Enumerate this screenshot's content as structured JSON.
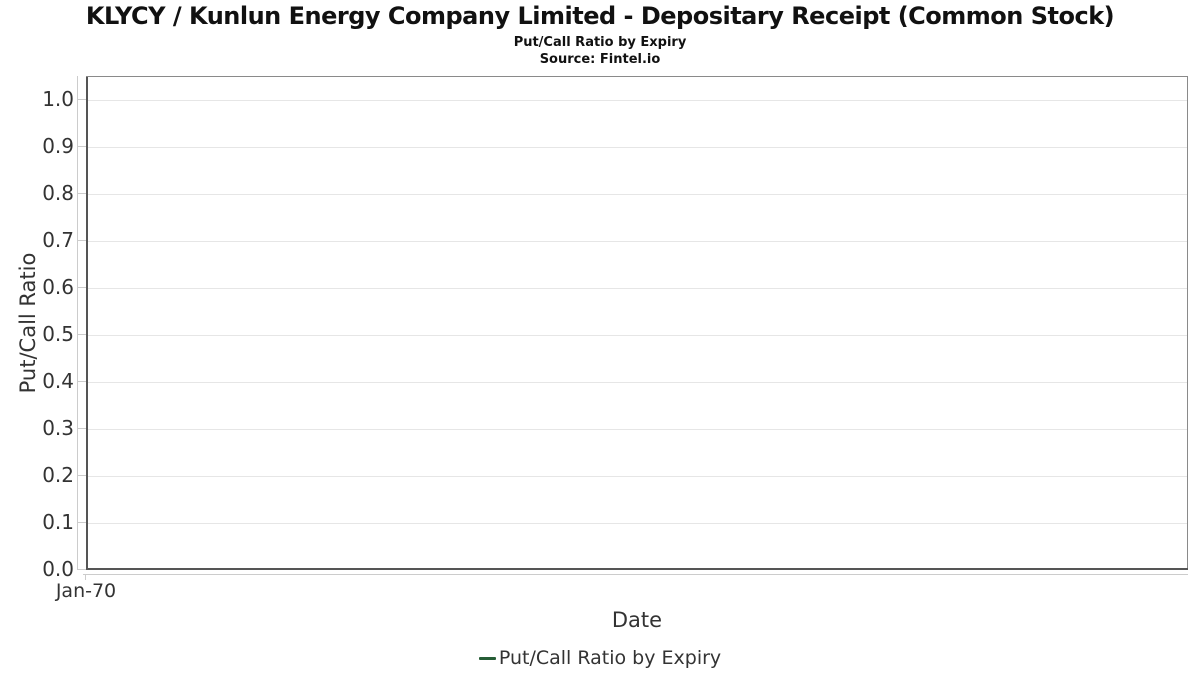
{
  "chart_data": {
    "type": "line",
    "title": "KLYCY / Kunlun Energy Company Limited - Depositary Receipt (Common Stock)",
    "subtitle": "Put/Call Ratio by Expiry",
    "source": "Source: Fintel.io",
    "xlabel": "Date",
    "ylabel": "Put/Call Ratio",
    "ylim": [
      0.0,
      1.05
    ],
    "yticks": [
      0.0,
      0.1,
      0.2,
      0.3,
      0.4,
      0.5,
      0.6,
      0.7,
      0.8,
      0.9,
      1.0
    ],
    "ytick_format_decimals": 1,
    "xticks": [
      "Jan-70"
    ],
    "grid": "horizontal-only",
    "gridline_color": "#e6e6e6",
    "legend_position": "bottom",
    "series": [
      {
        "name": "Put/Call Ratio by Expiry",
        "color": "#265d36",
        "x": [],
        "values": []
      }
    ]
  }
}
